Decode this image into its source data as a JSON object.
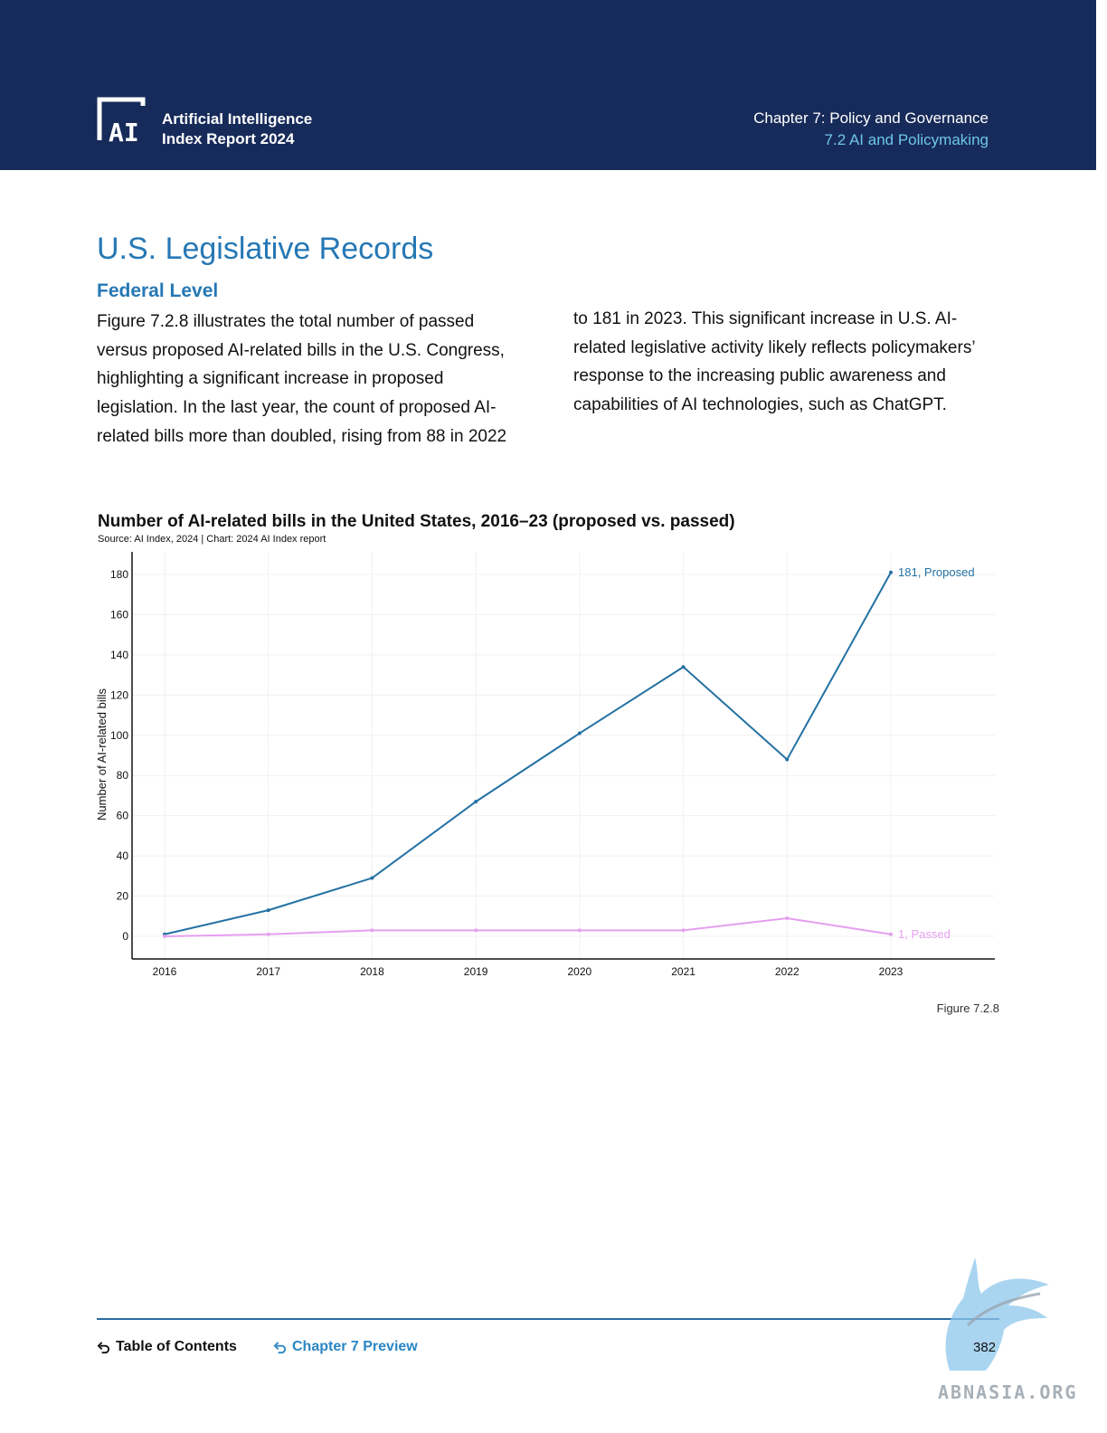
{
  "header": {
    "logo_text": "AI",
    "report_title_line1": "Artificial Intelligence",
    "report_title_line2": "Index Report 2024",
    "chapter_title": "Chapter 7: Policy and Governance",
    "section_title": "7.2 AI and Policymaking",
    "colors": {
      "background": "#172b5a",
      "accent": "#6fc6ea"
    }
  },
  "content": {
    "heading": "U.S. Legislative Records",
    "subheading": "Federal Level",
    "paragraph_left": "Figure 7.2.8 illustrates the total number of passed versus proposed AI-related bills in the U.S. Congress, highlighting a significant increase in proposed legislation. In the last year, the count of proposed AI-related bills more than doubled, rising from 88 in 2022",
    "paragraph_right": "to 181 in 2023. This significant increase in U.S. AI-related legislative activity likely reflects policymakers’ response to the increasing public awareness and capabilities of AI technologies, such as ChatGPT."
  },
  "chart_data": {
    "type": "line",
    "title": "Number of AI-related bills in the United States, 2016–23 (proposed vs. passed)",
    "source": "Source: AI Index, 2024 | Chart: 2024 AI Index report",
    "xlabel": "",
    "ylabel": "Number of AI-related bills",
    "x": [
      2016,
      2017,
      2018,
      2019,
      2020,
      2021,
      2022,
      2023
    ],
    "ylim": [
      0,
      180
    ],
    "yticks": [
      0,
      20,
      40,
      60,
      80,
      100,
      120,
      140,
      160,
      180
    ],
    "grid": true,
    "series": [
      {
        "name": "Proposed",
        "values": [
          1,
          13,
          29,
          67,
          101,
          134,
          88,
          181
        ],
        "color": "#2471a3",
        "end_label": "181, Proposed"
      },
      {
        "name": "Passed",
        "values": [
          0,
          1,
          3,
          3,
          3,
          3,
          9,
          1
        ],
        "color": "#e59ff0",
        "end_label": "1, Passed"
      }
    ]
  },
  "figure_label": "Figure 7.2.8",
  "footer": {
    "toc_label": "Table of Contents",
    "chapter_preview_label": "Chapter 7 Preview",
    "page_number": "382",
    "watermark_text": "ABNASIA.ORG"
  }
}
